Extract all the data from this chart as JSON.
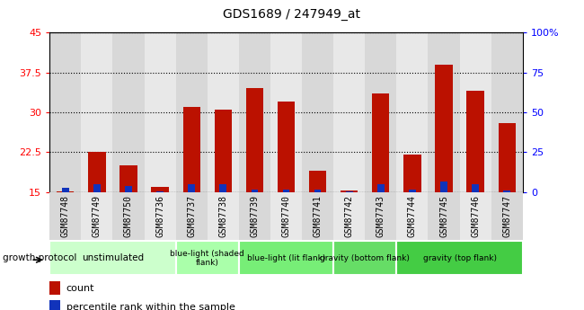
{
  "title": "GDS1689 / 247949_at",
  "samples": [
    "GSM87748",
    "GSM87749",
    "GSM87750",
    "GSM87736",
    "GSM87737",
    "GSM87738",
    "GSM87739",
    "GSM87740",
    "GSM87741",
    "GSM87742",
    "GSM87743",
    "GSM87744",
    "GSM87745",
    "GSM87746",
    "GSM87747"
  ],
  "red_values": [
    15.2,
    22.5,
    20.0,
    16.0,
    31.0,
    30.5,
    34.5,
    32.0,
    19.0,
    15.3,
    33.5,
    22.0,
    39.0,
    34.0,
    28.0
  ],
  "blue_values": [
    15.8,
    16.5,
    16.2,
    15.2,
    16.5,
    16.5,
    15.5,
    15.5,
    15.5,
    15.2,
    16.5,
    15.5,
    17.0,
    16.5,
    15.3
  ],
  "ylim_left": [
    15,
    45
  ],
  "ylim_right": [
    0,
    100
  ],
  "yticks_left": [
    15,
    22.5,
    30,
    37.5,
    45
  ],
  "yticks_right": [
    0,
    25,
    50,
    75,
    100
  ],
  "ytick_labels_right": [
    "0",
    "25",
    "50",
    "75",
    "100%"
  ],
  "ytick_labels_left": [
    "15",
    "22.5",
    "30",
    "37.5",
    "45"
  ],
  "bar_color_red": "#bb1100",
  "bar_color_blue": "#1133bb",
  "bar_width": 0.55,
  "col_bg_even": "#d8d8d8",
  "col_bg_odd": "#e8e8e8",
  "groups": [
    {
      "label": "unstimulated",
      "start": 0,
      "end": 4,
      "color": "#ccffcc"
    },
    {
      "label": "blue-light (shaded\nflank)",
      "start": 4,
      "end": 6,
      "color": "#aaffaa"
    },
    {
      "label": "blue-light (lit flank)",
      "start": 6,
      "end": 9,
      "color": "#77ee77"
    },
    {
      "label": "gravity (bottom flank)",
      "start": 9,
      "end": 11,
      "color": "#66dd66"
    },
    {
      "label": "gravity (top flank)",
      "start": 11,
      "end": 15,
      "color": "#44cc44"
    }
  ],
  "group_label_prefix": "growth protocol",
  "legend_count_label": "count",
  "legend_pct_label": "percentile rank within the sample"
}
